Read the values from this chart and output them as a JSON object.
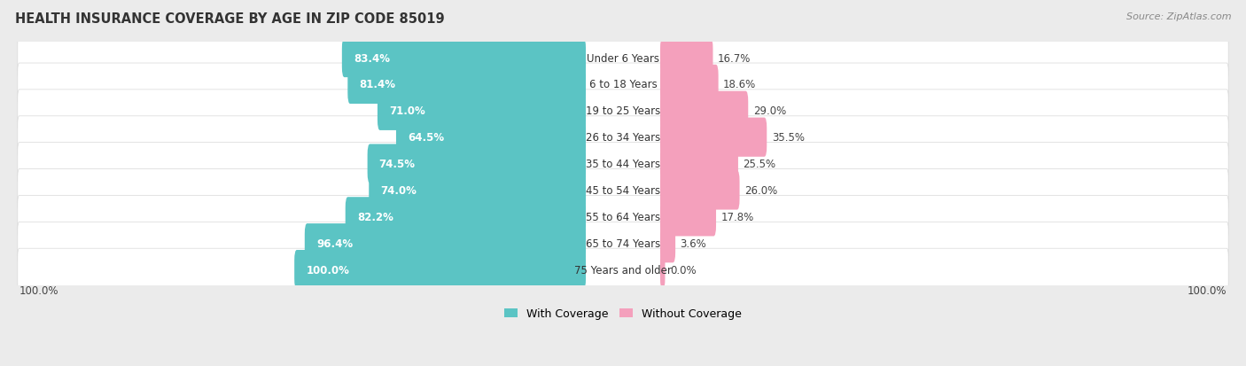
{
  "title": "HEALTH INSURANCE COVERAGE BY AGE IN ZIP CODE 85019",
  "source": "Source: ZipAtlas.com",
  "categories": [
    "Under 6 Years",
    "6 to 18 Years",
    "19 to 25 Years",
    "26 to 34 Years",
    "35 to 44 Years",
    "45 to 54 Years",
    "55 to 64 Years",
    "65 to 74 Years",
    "75 Years and older"
  ],
  "with_coverage": [
    83.4,
    81.4,
    71.0,
    64.5,
    74.5,
    74.0,
    82.2,
    96.4,
    100.0
  ],
  "without_coverage": [
    16.7,
    18.6,
    29.0,
    35.5,
    25.5,
    26.0,
    17.8,
    3.6,
    0.0
  ],
  "color_with": "#5BC4C4",
  "color_without": "#F4A0BC",
  "bg_color": "#EBEBEB",
  "row_bg_color": "#FFFFFF",
  "row_border_color": "#D8D8D8",
  "title_fontsize": 10.5,
  "bar_label_fontsize": 8.5,
  "cat_label_fontsize": 8.5,
  "legend_fontsize": 9,
  "source_fontsize": 8,
  "axis_label_fontsize": 8.5
}
